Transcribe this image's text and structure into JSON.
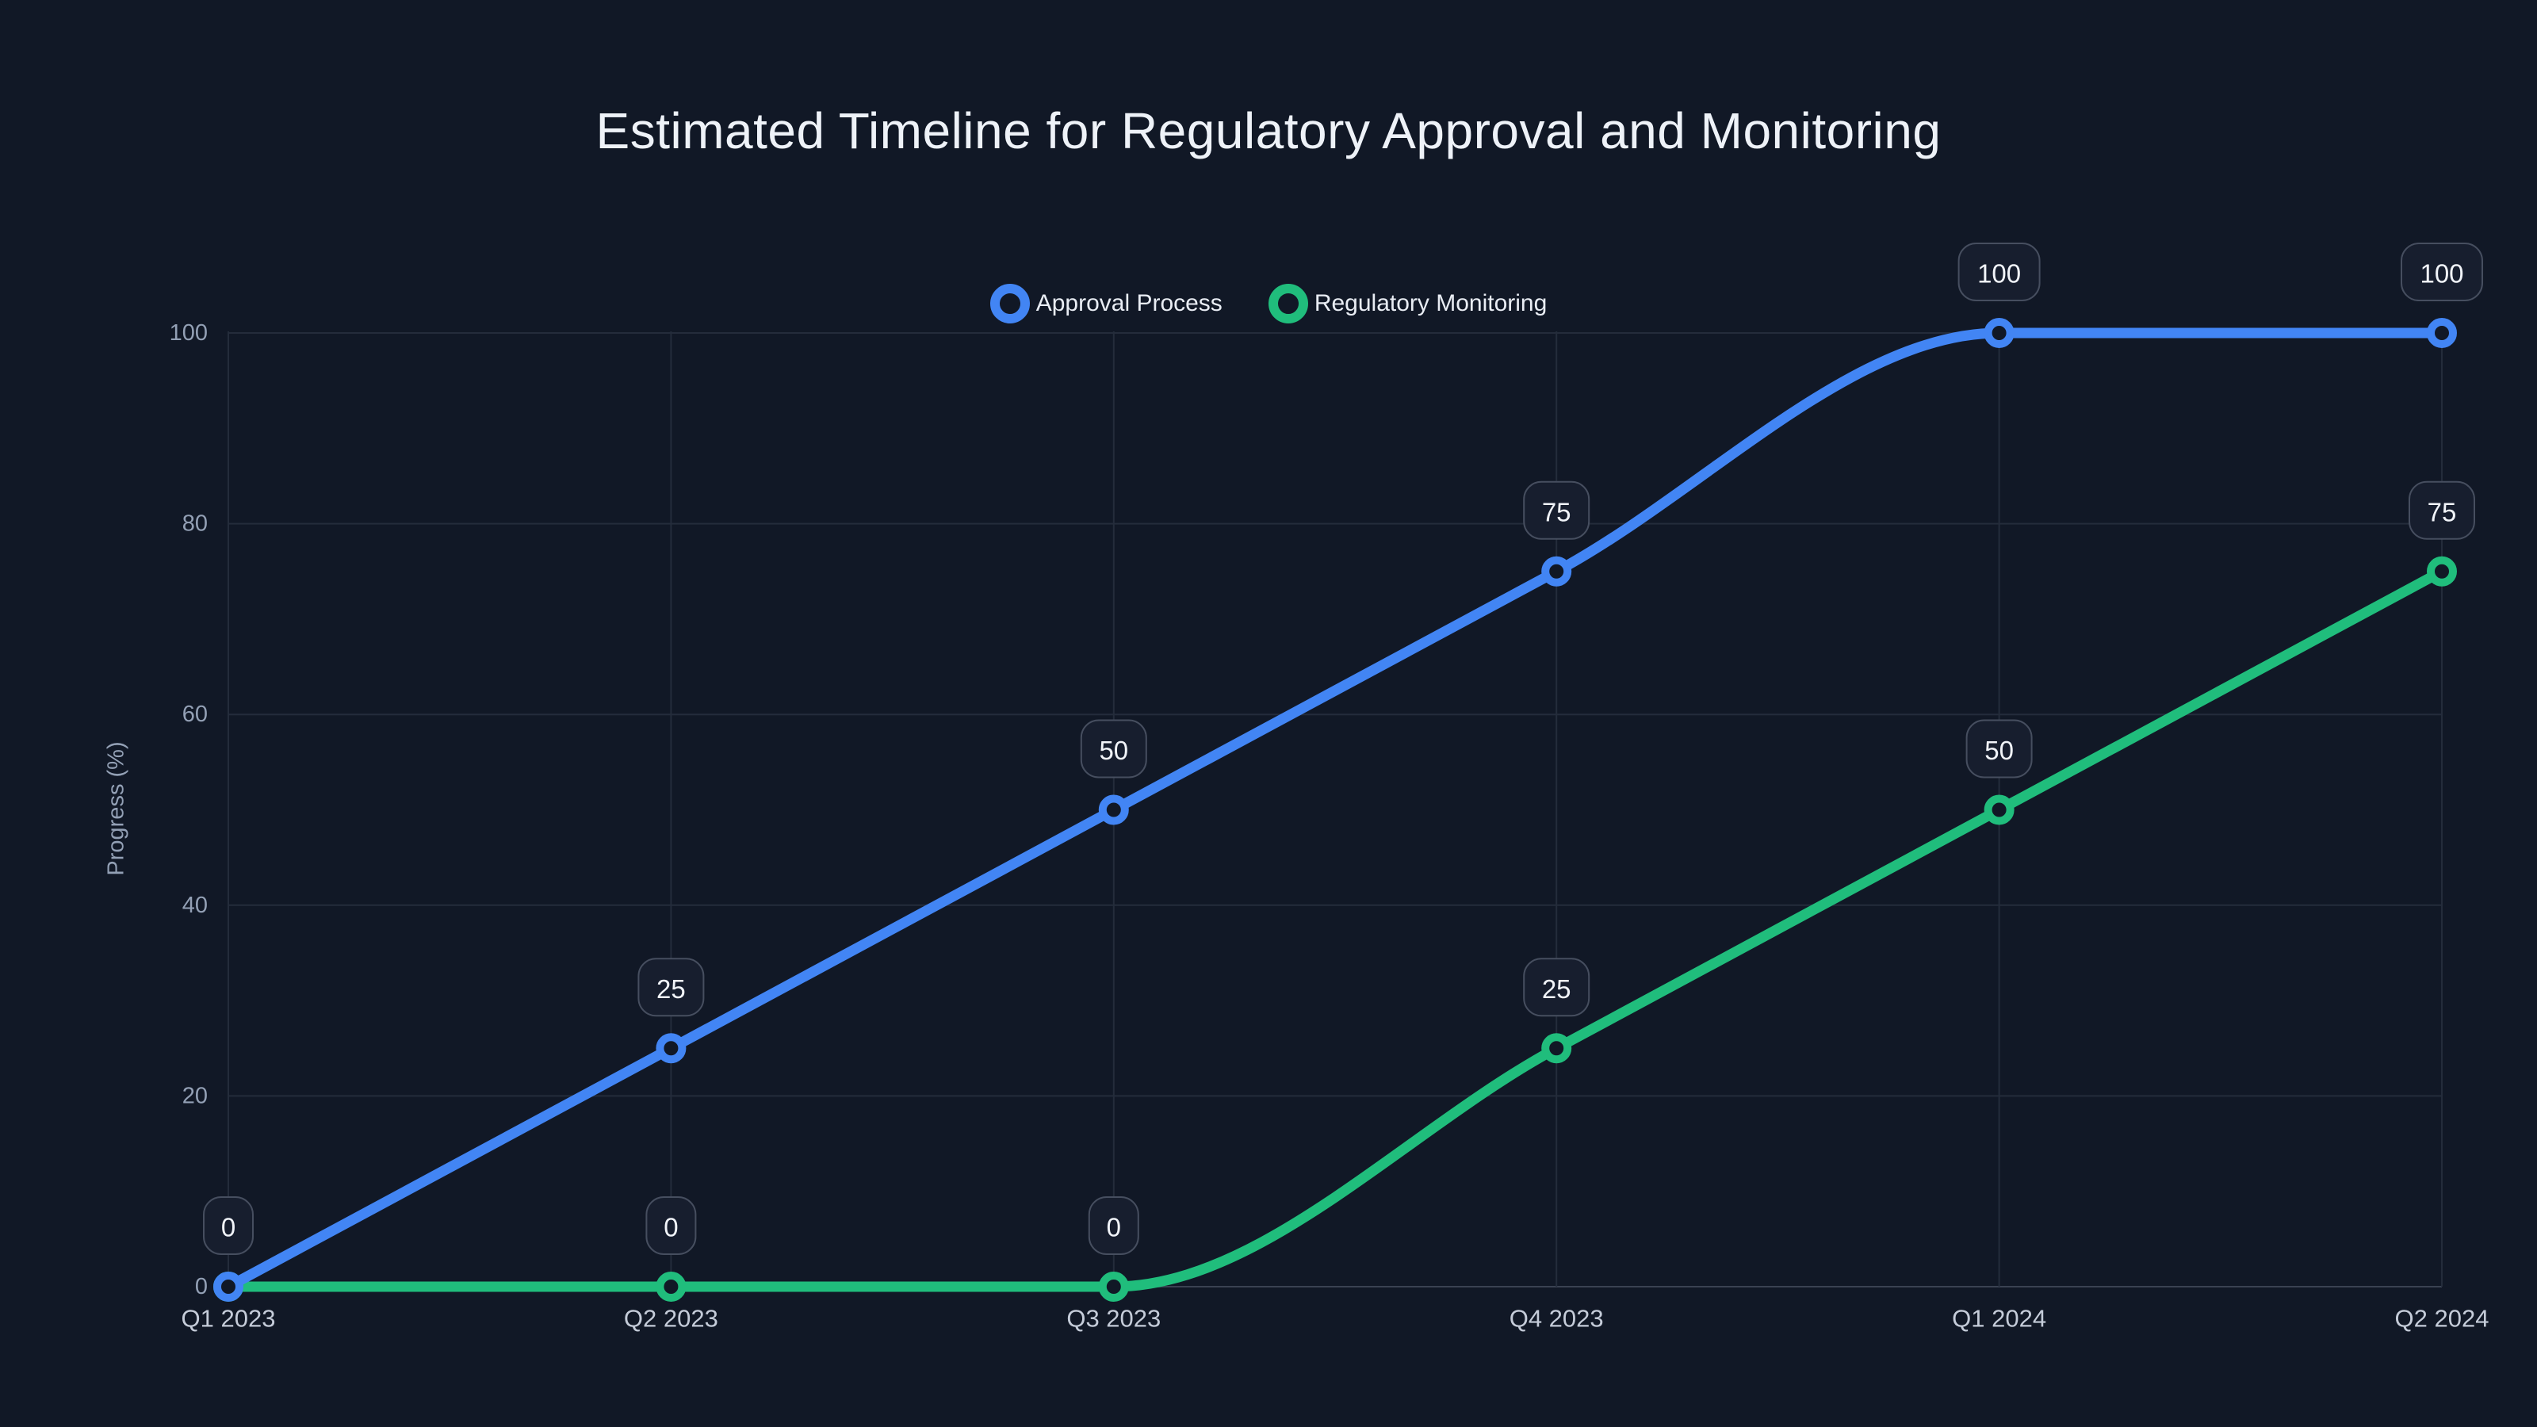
{
  "chart_data": {
    "type": "line",
    "title": "Estimated Timeline for Regulatory Approval and Monitoring",
    "xlabel": "",
    "ylabel": "Progress (%)",
    "categories": [
      "Q1 2023",
      "Q2 2023",
      "Q3 2023",
      "Q4 2023",
      "Q1 2024",
      "Q2 2024"
    ],
    "series": [
      {
        "name": "Approval Process",
        "color": "#4285f4",
        "values": [
          0,
          25,
          50,
          75,
          100,
          100
        ]
      },
      {
        "name": "Regulatory Monitoring",
        "color": "#20bd7c",
        "values": [
          0,
          0,
          0,
          25,
          50,
          75
        ]
      }
    ],
    "y_ticks": [
      0,
      20,
      40,
      60,
      80,
      100
    ],
    "ylim": [
      0,
      100
    ],
    "grid": true,
    "legend_position": "top-center",
    "point_labels": true,
    "curve": "monotone"
  },
  "theme": {
    "background": "#111826",
    "grid_line": "#242c3b",
    "axis_line": "#3a4252",
    "y_tick_color": "#93a0b5",
    "x_tick_color": "#c5ccd9",
    "label_box_bg": "#171e2e",
    "label_box_border": "#464e5f",
    "label_text": "#f1f4f9",
    "title_color": "#eef2f8",
    "legend_text": "#e9edf4"
  }
}
